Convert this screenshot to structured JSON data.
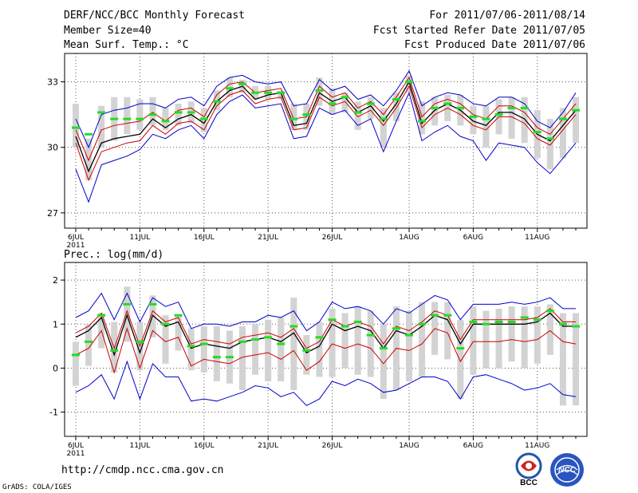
{
  "header": {
    "title": "DERF/NCC/BCC Monthly Forecast",
    "member_size": "Member Size=40",
    "variable": "Mean Surf. Temp.: °C",
    "period": "For 2011/07/06-2011/08/14",
    "start_date": "Fcst Started Refer Date 2011/07/05",
    "produced_date": "Fcst Produced Date 2011/07/06"
  },
  "footer": {
    "url": "http://cmdp.ncc.cma.gov.cn",
    "grads": "GrADS: COLA/IGES"
  },
  "logos": {
    "bcc_text": "BCC",
    "ncc_text": "NCC"
  },
  "colors": {
    "box": "#d3d3d3",
    "median": "#22dd22",
    "mean": "#000000",
    "outer": "#0000cc",
    "inner": "#cc0000",
    "grid": "#555555"
  },
  "chart_data": [
    {
      "type": "box_ensemble",
      "title": "Mean Surf. Temp.: °C",
      "xlabels": [
        "6JUL",
        "11JUL",
        "16JUL",
        "21JUL",
        "26JUL",
        "1AUG",
        "6AUG",
        "11AUG"
      ],
      "xlabel_year": "2011",
      "label_days": [
        0,
        5,
        10,
        15,
        20,
        26,
        31,
        36
      ],
      "ylim": [
        26.3,
        34.3
      ],
      "yticks": [
        27,
        30,
        33
      ],
      "mean": [
        30.5,
        28.9,
        30.2,
        30.4,
        30.5,
        30.6,
        31.3,
        30.9,
        31.3,
        31.5,
        31.1,
        32.1,
        32.6,
        32.8,
        32.2,
        32.4,
        32.5,
        31.0,
        31.1,
        32.5,
        32.1,
        32.3,
        31.6,
        31.9,
        31.2,
        32.0,
        33.0,
        31.1,
        31.7,
        32.0,
        31.7,
        31.2,
        31.0,
        31.6,
        31.6,
        31.3,
        30.6,
        30.3,
        31.0,
        31.7
      ],
      "outer_upper": [
        31.3,
        30.0,
        31.5,
        31.7,
        31.8,
        32.0,
        32.0,
        31.8,
        32.2,
        32.3,
        31.9,
        32.8,
        33.2,
        33.3,
        33.0,
        32.9,
        33.0,
        31.9,
        32.0,
        33.1,
        32.6,
        32.8,
        32.2,
        32.4,
        31.9,
        32.6,
        33.5,
        31.9,
        32.3,
        32.5,
        32.4,
        32.0,
        31.9,
        32.3,
        32.3,
        32.0,
        31.2,
        30.9,
        31.6,
        32.5
      ],
      "outer_lower": [
        29.0,
        27.5,
        29.2,
        29.4,
        29.6,
        29.9,
        30.6,
        30.4,
        30.8,
        31.0,
        30.4,
        31.5,
        32.1,
        32.4,
        31.8,
        31.9,
        32.0,
        30.4,
        30.5,
        31.8,
        31.5,
        31.7,
        31.0,
        31.3,
        29.8,
        31.2,
        32.5,
        30.3,
        30.7,
        31.0,
        30.5,
        30.3,
        29.4,
        30.2,
        30.1,
        30.0,
        29.3,
        28.8,
        29.5,
        30.2
      ],
      "inner_upper": [
        30.8,
        29.4,
        30.8,
        31.0,
        31.1,
        31.2,
        31.6,
        31.2,
        31.7,
        31.8,
        31.4,
        32.4,
        32.9,
        33.0,
        32.5,
        32.6,
        32.7,
        31.3,
        31.4,
        32.8,
        32.3,
        32.5,
        31.8,
        32.1,
        31.5,
        32.3,
        33.2,
        31.4,
        32.0,
        32.2,
        32.0,
        31.5,
        31.3,
        31.9,
        31.9,
        31.6,
        30.9,
        30.6,
        31.3,
        32.0
      ],
      "inner_lower": [
        30.2,
        28.5,
        29.8,
        30.0,
        30.2,
        30.3,
        31.0,
        30.6,
        31.1,
        31.2,
        30.8,
        31.9,
        32.4,
        32.6,
        32.0,
        32.2,
        32.3,
        30.8,
        30.9,
        32.3,
        31.9,
        32.1,
        31.4,
        31.7,
        31.0,
        31.8,
        32.8,
        30.9,
        31.5,
        31.8,
        31.5,
        31.0,
        30.8,
        31.4,
        31.4,
        31.1,
        30.4,
        30.1,
        30.8,
        31.5
      ],
      "box_upper": [
        32.0,
        30.4,
        31.9,
        32.3,
        32.3,
        32.2,
        32.3,
        31.8,
        32.0,
        32.1,
        31.8,
        32.6,
        33.2,
        33.1,
        32.8,
        32.8,
        32.6,
        32.0,
        32.0,
        33.2,
        32.7,
        32.5,
        32.1,
        32.3,
        31.8,
        32.5,
        33.3,
        32.1,
        32.3,
        32.4,
        32.4,
        31.9,
        31.9,
        32.2,
        32.3,
        32.3,
        31.7,
        31.3,
        31.8,
        32.3
      ],
      "box_lower": [
        30.0,
        28.5,
        30.0,
        30.3,
        30.6,
        30.8,
        31.0,
        30.8,
        31.0,
        31.1,
        30.7,
        31.7,
        32.3,
        32.5,
        32.2,
        32.2,
        32.2,
        30.8,
        30.8,
        31.9,
        31.5,
        31.6,
        30.8,
        31.3,
        30.0,
        31.2,
        32.5,
        30.6,
        31.0,
        31.2,
        31.0,
        30.6,
        30.0,
        30.6,
        30.4,
        30.2,
        29.5,
        29.0,
        29.5,
        30.2
      ],
      "median": [
        30.9,
        30.6,
        31.6,
        31.3,
        31.3,
        31.3,
        31.5,
        31.2,
        31.6,
        31.6,
        31.3,
        32.1,
        32.7,
        32.9,
        32.5,
        32.5,
        32.5,
        31.3,
        31.5,
        32.6,
        32.0,
        32.3,
        31.6,
        32.0,
        31.3,
        32.2,
        33.0,
        31.2,
        31.8,
        32.0,
        31.8,
        31.4,
        31.3,
        31.5,
        31.8,
        31.8,
        30.7,
        30.4,
        31.3,
        31.7
      ]
    },
    {
      "type": "box_ensemble",
      "title": "Prec.: log(mm/d)",
      "xlabels": [
        "6JUL",
        "11JUL",
        "16JUL",
        "21JUL",
        "26JUL",
        "1AUG",
        "6AUG",
        "11AUG"
      ],
      "xlabel_year": "2011",
      "label_days": [
        0,
        5,
        10,
        15,
        20,
        26,
        31,
        36
      ],
      "ylim": [
        -1.55,
        2.4
      ],
      "yticks": [
        -1,
        0,
        1,
        2
      ],
      "mean": [
        0.7,
        0.85,
        1.15,
        0.3,
        1.2,
        0.35,
        1.2,
        0.95,
        1.05,
        0.45,
        0.55,
        0.5,
        0.45,
        0.6,
        0.65,
        0.7,
        0.6,
        0.8,
        0.35,
        0.5,
        1.0,
        0.85,
        0.95,
        0.85,
        0.45,
        0.85,
        0.75,
        0.95,
        1.2,
        1.1,
        0.55,
        1.0,
        1.0,
        1.0,
        1.0,
        1.0,
        1.05,
        1.25,
        0.95,
        0.95
      ],
      "outer_upper": [
        1.15,
        1.3,
        1.7,
        1.1,
        1.7,
        1.05,
        1.6,
        1.4,
        1.5,
        0.9,
        1.0,
        1.0,
        0.95,
        1.05,
        1.05,
        1.2,
        1.15,
        1.3,
        0.85,
        1.05,
        1.5,
        1.35,
        1.4,
        1.3,
        1.0,
        1.35,
        1.25,
        1.45,
        1.65,
        1.55,
        1.1,
        1.45,
        1.45,
        1.45,
        1.5,
        1.45,
        1.5,
        1.6,
        1.35,
        1.35
      ],
      "outer_lower": [
        -0.55,
        -0.4,
        -0.15,
        -0.7,
        0.15,
        -0.7,
        0.1,
        -0.2,
        -0.2,
        -0.75,
        -0.7,
        -0.75,
        -0.65,
        -0.55,
        -0.4,
        -0.45,
        -0.65,
        -0.55,
        -0.85,
        -0.7,
        -0.3,
        -0.4,
        -0.25,
        -0.35,
        -0.55,
        -0.5,
        -0.35,
        -0.2,
        -0.2,
        -0.3,
        -0.7,
        -0.2,
        -0.15,
        -0.25,
        -0.35,
        -0.5,
        -0.45,
        -0.35,
        -0.6,
        -0.65
      ],
      "inner_upper": [
        0.8,
        0.95,
        1.25,
        0.45,
        1.3,
        0.5,
        1.3,
        1.05,
        1.15,
        0.55,
        0.65,
        0.6,
        0.55,
        0.7,
        0.75,
        0.8,
        0.7,
        0.9,
        0.45,
        0.6,
        1.1,
        0.95,
        1.05,
        0.95,
        0.55,
        0.95,
        0.85,
        1.05,
        1.3,
        1.2,
        0.65,
        1.1,
        1.1,
        1.1,
        1.1,
        1.1,
        1.15,
        1.35,
        1.05,
        1.05
      ],
      "inner_lower": [
        0.3,
        0.45,
        0.85,
        -0.1,
        0.9,
        0.0,
        0.85,
        0.6,
        0.7,
        0.05,
        0.2,
        0.15,
        0.1,
        0.25,
        0.3,
        0.35,
        0.2,
        0.4,
        -0.05,
        0.15,
        0.55,
        0.45,
        0.55,
        0.45,
        0.1,
        0.45,
        0.4,
        0.55,
        0.9,
        0.8,
        0.15,
        0.6,
        0.6,
        0.6,
        0.65,
        0.6,
        0.65,
        0.85,
        0.6,
        0.55
      ],
      "box_upper": [
        0.6,
        1.0,
        1.25,
        1.05,
        1.85,
        1.05,
        1.65,
        1.2,
        1.2,
        0.9,
        0.95,
        0.95,
        0.85,
        0.95,
        1.0,
        1.1,
        1.15,
        1.6,
        0.75,
        1.05,
        1.35,
        1.25,
        1.4,
        1.3,
        1.0,
        1.4,
        1.3,
        1.5,
        1.5,
        1.5,
        1.1,
        1.4,
        1.3,
        1.35,
        1.4,
        1.4,
        1.4,
        1.45,
        1.25,
        1.25
      ],
      "box_lower": [
        -0.4,
        0.05,
        0.45,
        -0.1,
        0.6,
        -0.05,
        0.7,
        0.1,
        0.4,
        -0.05,
        -0.1,
        -0.3,
        -0.35,
        -0.5,
        -0.15,
        -0.3,
        -0.3,
        -0.5,
        -0.15,
        -0.2,
        -0.2,
        0.0,
        -0.15,
        -0.2,
        -0.7,
        -0.5,
        -0.3,
        -0.2,
        0.3,
        0.2,
        -0.7,
        -0.15,
        0.0,
        0.0,
        0.15,
        0.0,
        0.1,
        0.3,
        -0.85,
        -0.85
      ],
      "median": [
        0.3,
        0.6,
        1.2,
        0.4,
        1.45,
        0.6,
        1.45,
        1.0,
        1.2,
        0.5,
        0.55,
        0.25,
        0.25,
        0.6,
        0.65,
        0.7,
        0.55,
        0.95,
        0.4,
        0.7,
        1.1,
        0.95,
        1.05,
        0.75,
        0.45,
        0.9,
        0.75,
        1.0,
        1.2,
        1.2,
        0.45,
        1.05,
        1.0,
        1.05,
        1.05,
        1.15,
        1.1,
        1.3,
        1.0,
        0.95
      ]
    }
  ]
}
